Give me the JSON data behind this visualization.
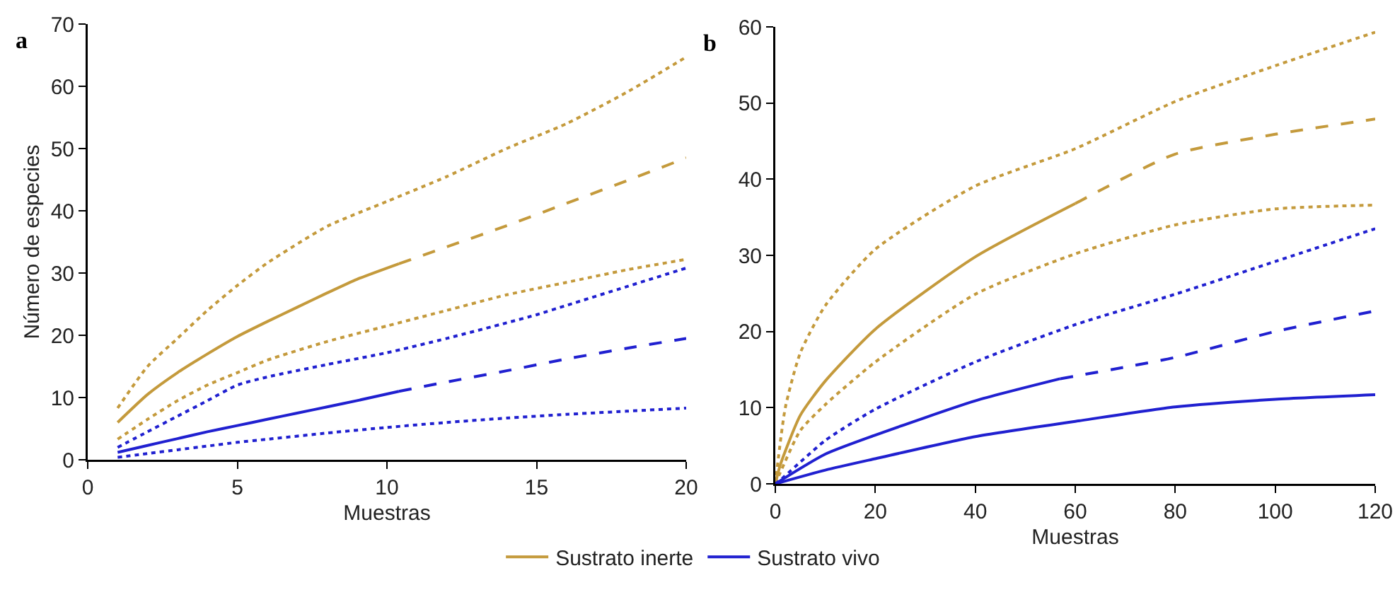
{
  "chart_data": [
    {
      "type": "line",
      "title": "a",
      "xlabel": "Muestras",
      "ylabel": "Número de especies",
      "xlim": [
        0,
        20
      ],
      "xticks": [
        0,
        5,
        10,
        15,
        20
      ],
      "ylim": [
        0,
        70
      ],
      "yticks": [
        0,
        10,
        20,
        30,
        40,
        50,
        60,
        70
      ],
      "grid": false,
      "legend": "bottom",
      "marker": "none",
      "series": [
        {
          "color": "#c49a3c",
          "line_style": "dotted",
          "x": [
            1,
            2,
            3,
            4,
            5,
            6,
            8,
            10,
            12,
            14,
            16,
            18,
            20
          ],
          "values": [
            8.3,
            15,
            19.5,
            24,
            28,
            31.6,
            37.5,
            41.5,
            45.5,
            50,
            54,
            59,
            64.7
          ]
        },
        {
          "color": "#c49a3c",
          "line_style": "dotted",
          "x": [
            1,
            2,
            3,
            4,
            5,
            6,
            8,
            10,
            12,
            14,
            16,
            18,
            20
          ],
          "values": [
            3.3,
            6.5,
            9.5,
            12,
            14,
            16,
            19,
            21.5,
            24,
            26.5,
            28.5,
            30.5,
            32.2
          ]
        },
        {
          "color": "#c49a3c",
          "line_style": "dashed",
          "x": [
            10.4,
            12,
            14,
            16,
            18,
            20
          ],
          "values": [
            31.5,
            34.2,
            37.6,
            41.2,
            44.8,
            48.5
          ]
        },
        {
          "name": "Sustrato inerte",
          "color": "#c49a3c",
          "line_style": "solid",
          "x": [
            1,
            2,
            3,
            4,
            5,
            6,
            7,
            8,
            9,
            10.4
          ],
          "values": [
            6,
            10.5,
            14,
            17,
            19.8,
            22.2,
            24.5,
            26.8,
            29,
            31.5
          ]
        },
        {
          "color": "#2020d0",
          "line_style": "dotted",
          "x": [
            1,
            2,
            3,
            4,
            5,
            6,
            8,
            10,
            12,
            14,
            15,
            16,
            18,
            20
          ],
          "values": [
            2,
            4.5,
            7,
            9.5,
            12,
            13.3,
            15.3,
            17.2,
            19.5,
            22,
            23.3,
            24.8,
            27.8,
            30.8
          ]
        },
        {
          "color": "#2020d0",
          "line_style": "dotted",
          "x": [
            1,
            2,
            3,
            4,
            5,
            6,
            8,
            10,
            12,
            14,
            16,
            18,
            20
          ],
          "values": [
            0.4,
            1,
            1.6,
            2.2,
            2.8,
            3.3,
            4.3,
            5.2,
            6,
            6.7,
            7.3,
            7.8,
            8.3
          ]
        },
        {
          "color": "#2020d0",
          "line_style": "dashed",
          "x": [
            10.4,
            12,
            14,
            16,
            18,
            20
          ],
          "values": [
            11,
            12.5,
            14.3,
            16.2,
            17.9,
            19.5
          ]
        },
        {
          "name": "Sustrato vivo",
          "color": "#2020d0",
          "line_style": "solid",
          "x": [
            1,
            2,
            3,
            4,
            5,
            6,
            7,
            8,
            9,
            10.4
          ],
          "values": [
            1.2,
            2.3,
            3.4,
            4.5,
            5.5,
            6.5,
            7.5,
            8.5,
            9.5,
            11
          ]
        }
      ]
    },
    {
      "type": "line",
      "title": "b",
      "xlabel": "Muestras",
      "xlim": [
        0,
        120
      ],
      "xticks": [
        0,
        20,
        40,
        60,
        80,
        100,
        120
      ],
      "ylim": [
        0,
        60
      ],
      "yticks": [
        0,
        10,
        20,
        30,
        40,
        50,
        60
      ],
      "grid": false,
      "marker": "none",
      "series": [
        {
          "color": "#c49a3c",
          "line_style": "dotted",
          "x": [
            0,
            2,
            5,
            10,
            20,
            40,
            60,
            80,
            100,
            120
          ],
          "values": [
            0,
            10,
            17.2,
            23.4,
            30.8,
            39.1,
            44,
            50.2,
            54.9,
            59.3
          ]
        },
        {
          "color": "#c49a3c",
          "line_style": "dotted",
          "x": [
            0,
            1,
            5,
            10,
            20,
            40,
            60,
            80,
            100,
            120
          ],
          "values": [
            0,
            1.5,
            7,
            10.4,
            16,
            24.9,
            30.2,
            34,
            36.1,
            36.6
          ]
        },
        {
          "color": "#c49a3c",
          "line_style": "dashed",
          "x": [
            60,
            80,
            100,
            120
          ],
          "values": [
            36.8,
            43.3,
            45.9,
            47.9
          ]
        },
        {
          "color": "#c49a3c",
          "line_style": "solid",
          "x": [
            0,
            1,
            5,
            10,
            20,
            40,
            60
          ],
          "values": [
            0,
            2.5,
            9,
            13.5,
            20.3,
            29.8,
            36.8
          ]
        },
        {
          "color": "#2020d0",
          "line_style": "dotted",
          "x": [
            0,
            1,
            10,
            20,
            40,
            60,
            80,
            100,
            120
          ],
          "values": [
            0,
            0.5,
            5.7,
            9.8,
            16,
            20.9,
            24.9,
            29.2,
            33.5
          ]
        },
        {
          "color": "#2020d0",
          "line_style": "dashed",
          "x": [
            57,
            80,
            100,
            120
          ],
          "values": [
            13.8,
            16.6,
            20,
            22.7
          ]
        },
        {
          "color": "#2020d0",
          "line_style": "solid",
          "x": [
            0,
            10,
            20,
            40,
            57
          ],
          "values": [
            0,
            3.9,
            6.4,
            10.9,
            13.8
          ]
        },
        {
          "color": "#2020d0",
          "line_style": "solid",
          "x": [
            0,
            10,
            20,
            40,
            60,
            80,
            100,
            120
          ],
          "values": [
            0,
            1.8,
            3.3,
            6.2,
            8.2,
            10.1,
            11.1,
            11.7
          ]
        }
      ]
    }
  ]
}
